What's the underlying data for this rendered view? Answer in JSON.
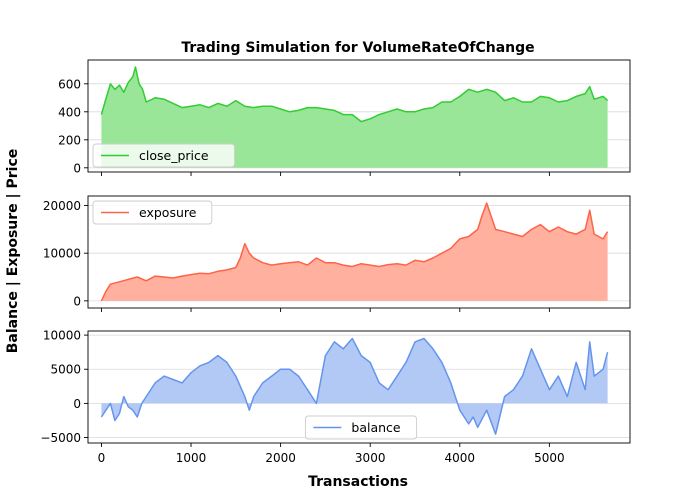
{
  "chart_data": {
    "type": "area",
    "title": "Trading Simulation for VolumeRateOfChange",
    "xlabel": "Transactions",
    "ylabel": "Balance | Exposure | Price",
    "xlim": [
      -150,
      5900
    ],
    "xticks": [
      0,
      1000,
      2000,
      3000,
      4000,
      5000
    ],
    "grid": "horizontal",
    "panels": [
      {
        "series_name": "close_price",
        "line_color": "#33cc33",
        "fill_color": "#99e699",
        "legend_position": "lower-left",
        "ylim": [
          -30,
          770
        ],
        "yticks": [
          0,
          200,
          400,
          600
        ],
        "x": [
          0,
          40,
          100,
          150,
          200,
          250,
          300,
          350,
          380,
          420,
          460,
          500,
          600,
          700,
          800,
          900,
          1000,
          1100,
          1200,
          1300,
          1400,
          1500,
          1600,
          1700,
          1800,
          1900,
          2000,
          2100,
          2200,
          2300,
          2400,
          2500,
          2600,
          2700,
          2800,
          2900,
          3000,
          3100,
          3200,
          3300,
          3400,
          3500,
          3600,
          3700,
          3800,
          3900,
          4000,
          4100,
          4200,
          4300,
          4400,
          4500,
          4600,
          4700,
          4800,
          4900,
          5000,
          5100,
          5200,
          5300,
          5400,
          5450,
          5500,
          5600,
          5650
        ],
        "values": [
          380,
          470,
          600,
          560,
          590,
          540,
          610,
          650,
          720,
          600,
          560,
          470,
          500,
          490,
          460,
          430,
          440,
          450,
          430,
          460,
          440,
          480,
          440,
          430,
          440,
          440,
          420,
          400,
          410,
          430,
          430,
          420,
          410,
          380,
          380,
          330,
          350,
          380,
          400,
          420,
          400,
          400,
          420,
          430,
          470,
          470,
          510,
          560,
          540,
          560,
          540,
          480,
          500,
          470,
          470,
          510,
          500,
          470,
          480,
          510,
          530,
          580,
          490,
          510,
          480
        ]
      },
      {
        "series_name": "exposure",
        "line_color": "#ff6347",
        "fill_color": "#ffb09f",
        "legend_position": "upper-left",
        "ylim": [
          -1500,
          22000
        ],
        "yticks": [
          0,
          10000,
          20000
        ],
        "x": [
          0,
          50,
          100,
          200,
          300,
          400,
          500,
          600,
          700,
          800,
          900,
          1000,
          1100,
          1200,
          1300,
          1400,
          1500,
          1550,
          1600,
          1650,
          1700,
          1800,
          1900,
          2000,
          2100,
          2200,
          2300,
          2400,
          2500,
          2600,
          2700,
          2800,
          2900,
          3000,
          3100,
          3200,
          3300,
          3400,
          3500,
          3600,
          3700,
          3800,
          3900,
          4000,
          4100,
          4200,
          4250,
          4300,
          4400,
          4500,
          4600,
          4700,
          4800,
          4900,
          5000,
          5100,
          5200,
          5300,
          5400,
          5450,
          5500,
          5600,
          5650
        ],
        "values": [
          0,
          2000,
          3500,
          4000,
          4500,
          5000,
          4200,
          5200,
          5000,
          4800,
          5200,
          5500,
          5800,
          5700,
          6200,
          6500,
          7000,
          9000,
          12000,
          10000,
          9000,
          8000,
          7500,
          7800,
          8000,
          8200,
          7500,
          9000,
          8000,
          8000,
          7500,
          7200,
          7800,
          7500,
          7200,
          7600,
          7800,
          7500,
          8500,
          8200,
          9000,
          10000,
          11000,
          13000,
          13500,
          15000,
          18000,
          20500,
          15000,
          14500,
          14000,
          13500,
          15000,
          16000,
          14500,
          15500,
          14500,
          14000,
          15000,
          19000,
          14000,
          13000,
          14500
        ]
      },
      {
        "series_name": "balance",
        "line_color": "#6495ed",
        "fill_color": "#b3c9f5",
        "legend_position": "lower-center",
        "ylim": [
          -5800,
          10600
        ],
        "yticks": [
          -5000,
          0,
          5000,
          10000
        ],
        "x": [
          0,
          50,
          100,
          150,
          200,
          250,
          300,
          350,
          400,
          450,
          500,
          600,
          700,
          800,
          900,
          1000,
          1100,
          1200,
          1300,
          1400,
          1500,
          1600,
          1650,
          1700,
          1800,
          1900,
          2000,
          2100,
          2200,
          2300,
          2400,
          2500,
          2600,
          2700,
          2800,
          2900,
          3000,
          3100,
          3200,
          3300,
          3400,
          3500,
          3600,
          3700,
          3800,
          3900,
          3950,
          4000,
          4100,
          4150,
          4200,
          4300,
          4400,
          4500,
          4600,
          4700,
          4800,
          4900,
          5000,
          5100,
          5200,
          5300,
          5400,
          5450,
          5500,
          5600,
          5650
        ],
        "values": [
          -2000,
          -1000,
          0,
          -2500,
          -1500,
          1000,
          -500,
          -1000,
          -2000,
          0,
          1000,
          3000,
          4000,
          3500,
          3000,
          4500,
          5500,
          6000,
          7000,
          6000,
          4000,
          1000,
          -1000,
          1000,
          3000,
          4000,
          5000,
          5000,
          4000,
          2000,
          0,
          7000,
          9000,
          8000,
          9500,
          7000,
          6000,
          3000,
          2000,
          4000,
          6000,
          9000,
          9500,
          8000,
          6000,
          3000,
          1000,
          -1000,
          -3000,
          -2000,
          -3500,
          -1000,
          -4500,
          1000,
          2000,
          4000,
          8000,
          5000,
          2000,
          4000,
          1000,
          6000,
          2000,
          9000,
          4000,
          5000,
          7500
        ]
      }
    ]
  }
}
